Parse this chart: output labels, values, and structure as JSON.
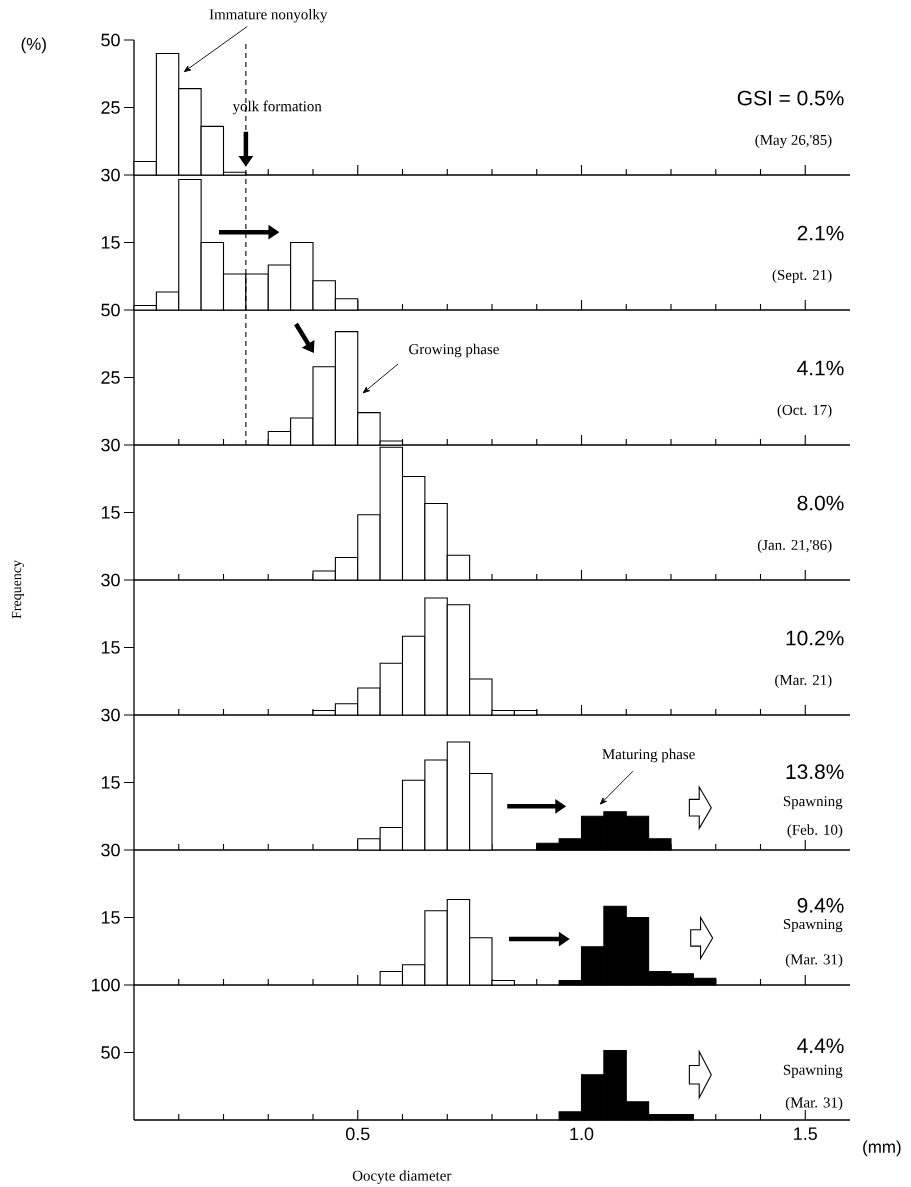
{
  "chart_data": [
    {
      "type": "histogram",
      "title": "GSI = 0.5%",
      "subtitle": "(May 26,'85)",
      "color": "#ffffff",
      "bins": [
        0,
        0.05,
        0.1,
        0.15,
        0.2,
        0.25
      ],
      "values": [
        5,
        45,
        32,
        18,
        1
      ],
      "xlim": [
        0,
        1.6
      ],
      "xticks": [
        {
          "value": 0.1,
          "label": null
        },
        {
          "value": 0.2,
          "label": null
        },
        {
          "value": 0.3,
          "label": null
        },
        {
          "value": 0.4,
          "label": null
        },
        {
          "value": 0.5,
          "label": null
        },
        {
          "value": 0.6,
          "label": null
        },
        {
          "value": 0.7,
          "label": null
        },
        {
          "value": 0.8,
          "label": null
        },
        {
          "value": 0.9,
          "label": null
        },
        {
          "value": 1.0,
          "label": null
        },
        {
          "value": 1.1,
          "label": null
        },
        {
          "value": 1.2,
          "label": null
        },
        {
          "value": 1.3,
          "label": null
        },
        {
          "value": 1.4,
          "label": null
        },
        {
          "value": 1.5,
          "label": null
        }
      ],
      "ylim": [
        0,
        50
      ],
      "yticks": [
        25,
        50
      ],
      "tick_labels": "y",
      "ref_lines": [
        {
          "axis": "x",
          "value": 0.25,
          "line_style": "dashed"
        }
      ],
      "annotations": [
        "(%)",
        {
          "text": "Immature nonyolky",
          "x": 0.11,
          "y": 38
        },
        "yolk formation"
      ]
    },
    {
      "type": "histogram",
      "title": "2.1%",
      "subtitle": "(Sept. 21)",
      "color": "#ffffff",
      "bins": [
        0,
        0.05,
        0.1,
        0.15,
        0.2,
        0.25,
        0.3,
        0.35,
        0.4,
        0.45,
        0.5
      ],
      "values": [
        1,
        4,
        29,
        15,
        8,
        8,
        10,
        15,
        6.5,
        2.5
      ],
      "xlim": [
        0,
        1.6
      ],
      "xticks": [
        {
          "value": 0.1,
          "label": null
        },
        {
          "value": 0.2,
          "label": null
        },
        {
          "value": 0.3,
          "label": null
        },
        {
          "value": 0.4,
          "label": null
        },
        {
          "value": 0.5,
          "label": null
        },
        {
          "value": 0.6,
          "label": null
        },
        {
          "value": 0.7,
          "label": null
        },
        {
          "value": 0.8,
          "label": null
        },
        {
          "value": 0.9,
          "label": null
        },
        {
          "value": 1.0,
          "label": null
        },
        {
          "value": 1.1,
          "label": null
        },
        {
          "value": 1.2,
          "label": null
        },
        {
          "value": 1.3,
          "label": null
        },
        {
          "value": 1.4,
          "label": null
        },
        {
          "value": 1.5,
          "label": null
        }
      ],
      "ylim": [
        0,
        30
      ],
      "yticks": [
        15,
        30
      ],
      "tick_labels": "y",
      "ref_lines": [
        {
          "axis": "x",
          "value": 0.25,
          "line_style": "dashed"
        }
      ]
    },
    {
      "type": "histogram",
      "title": "4.1%",
      "subtitle": "(Oct. 17)",
      "color": "#ffffff",
      "bins": [
        0.3,
        0.35,
        0.4,
        0.45,
        0.5,
        0.55,
        0.6
      ],
      "values": [
        5,
        10,
        29,
        42,
        12,
        1.5
      ],
      "xlim": [
        0,
        1.6
      ],
      "xticks": [
        {
          "value": 0.1,
          "label": null
        },
        {
          "value": 0.2,
          "label": null
        },
        {
          "value": 0.3,
          "label": null
        },
        {
          "value": 0.4,
          "label": null
        },
        {
          "value": 0.5,
          "label": null
        },
        {
          "value": 0.6,
          "label": null
        },
        {
          "value": 0.7,
          "label": null
        },
        {
          "value": 0.8,
          "label": null
        },
        {
          "value": 0.9,
          "label": null
        },
        {
          "value": 1.0,
          "label": null
        },
        {
          "value": 1.1,
          "label": null
        },
        {
          "value": 1.2,
          "label": null
        },
        {
          "value": 1.3,
          "label": null
        },
        {
          "value": 1.4,
          "label": null
        },
        {
          "value": 1.5,
          "label": null
        }
      ],
      "ylim": [
        0,
        50
      ],
      "yticks": [
        25,
        50
      ],
      "tick_labels": "y",
      "ref_lines": [
        {
          "axis": "x",
          "value": 0.25,
          "line_style": "dashed"
        }
      ],
      "annotations": [
        {
          "text": "Growing phase",
          "x": 0.51,
          "y": 19
        }
      ]
    },
    {
      "type": "histogram",
      "title": "8.0%",
      "subtitle": "(Jan. 21,'86)",
      "ylabel": "Frequency",
      "color": "#ffffff",
      "bins": [
        0.4,
        0.45,
        0.5,
        0.55,
        0.6,
        0.65,
        0.7,
        0.75
      ],
      "values": [
        2,
        5,
        14.5,
        29.5,
        23,
        17,
        5.5
      ],
      "xlim": [
        0,
        1.6
      ],
      "xticks": [
        {
          "value": 0.1,
          "label": null
        },
        {
          "value": 0.2,
          "label": null
        },
        {
          "value": 0.3,
          "label": null
        },
        {
          "value": 0.4,
          "label": null
        },
        {
          "value": 0.5,
          "label": null
        },
        {
          "value": 0.6,
          "label": null
        },
        {
          "value": 0.7,
          "label": null
        },
        {
          "value": 0.8,
          "label": null
        },
        {
          "value": 0.9,
          "label": null
        },
        {
          "value": 1.0,
          "label": null
        },
        {
          "value": 1.1,
          "label": null
        },
        {
          "value": 1.2,
          "label": null
        },
        {
          "value": 1.3,
          "label": null
        },
        {
          "value": 1.4,
          "label": null
        },
        {
          "value": 1.5,
          "label": null
        }
      ],
      "ylim": [
        0,
        30
      ],
      "yticks": [
        15,
        30
      ],
      "tick_labels": "y"
    },
    {
      "type": "histogram",
      "title": "10.2%",
      "subtitle": "(Mar. 21)",
      "color": "#ffffff",
      "bins": [
        0.4,
        0.45,
        0.5,
        0.55,
        0.6,
        0.65,
        0.7,
        0.75,
        0.8,
        0.85,
        0.9
      ],
      "values": [
        1,
        2.5,
        6,
        11.5,
        17.5,
        26,
        24.5,
        8,
        1,
        1
      ],
      "xlim": [
        0,
        1.6
      ],
      "xticks": [
        {
          "value": 0.1,
          "label": null
        },
        {
          "value": 0.2,
          "label": null
        },
        {
          "value": 0.3,
          "label": null
        },
        {
          "value": 0.4,
          "label": null
        },
        {
          "value": 0.5,
          "label": null
        },
        {
          "value": 0.6,
          "label": null
        },
        {
          "value": 0.7,
          "label": null
        },
        {
          "value": 0.8,
          "label": null
        },
        {
          "value": 0.9,
          "label": null
        },
        {
          "value": 1.0,
          "label": null
        },
        {
          "value": 1.1,
          "label": null
        },
        {
          "value": 1.2,
          "label": null
        },
        {
          "value": 1.3,
          "label": null
        },
        {
          "value": 1.4,
          "label": null
        },
        {
          "value": 1.5,
          "label": null
        }
      ],
      "ylim": [
        0,
        30
      ],
      "yticks": [
        15,
        30
      ],
      "tick_labels": "y"
    },
    {
      "type": "histogram",
      "title": "13.8%",
      "subtitle": "(Feb. 10)",
      "bins": [
        0.5,
        0.55,
        0.6,
        0.65,
        0.7,
        0.75,
        0.8,
        0.85,
        0.9,
        0.95,
        1.0,
        1.05,
        1.1,
        1.15,
        1.2
      ],
      "series": [
        {
          "color": "#ffffff",
          "values": [
            2.5,
            5,
            15.5,
            20,
            24,
            17,
            null,
            null,
            null,
            null,
            null,
            null,
            null,
            null
          ]
        },
        {
          "color": "#000000",
          "values": [
            null,
            null,
            null,
            null,
            null,
            null,
            null,
            null,
            1.5,
            2.5,
            7.5,
            8.5,
            7.5,
            2.5
          ]
        }
      ],
      "xlim": [
        0,
        1.6
      ],
      "xticks": [
        {
          "value": 0.1,
          "label": null
        },
        {
          "value": 0.2,
          "label": null
        },
        {
          "value": 0.3,
          "label": null
        },
        {
          "value": 0.4,
          "label": null
        },
        {
          "value": 0.5,
          "label": null
        },
        {
          "value": 0.6,
          "label": null
        },
        {
          "value": 0.7,
          "label": null
        },
        {
          "value": 0.8,
          "label": null
        },
        {
          "value": 0.9,
          "label": null
        },
        {
          "value": 1.0,
          "label": null
        },
        {
          "value": 1.1,
          "label": null
        },
        {
          "value": 1.2,
          "label": null
        },
        {
          "value": 1.3,
          "label": null
        },
        {
          "value": 1.4,
          "label": null
        },
        {
          "value": 1.5,
          "label": null
        }
      ],
      "ylim": [
        0,
        30
      ],
      "yticks": [
        15,
        30
      ],
      "tick_labels": "y",
      "annotations": [
        "Maturing phase",
        "Spawning"
      ]
    },
    {
      "type": "histogram",
      "title": "9.4%",
      "subtitle": "(Mar. 31)",
      "bins": [
        0.55,
        0.6,
        0.65,
        0.7,
        0.75,
        0.8,
        0.85,
        0.9,
        0.95,
        1.0,
        1.05,
        1.1,
        1.15,
        1.2,
        1.25,
        1.3
      ],
      "series": [
        {
          "color": "#ffffff",
          "values": [
            3,
            4.5,
            16.5,
            19,
            10.5,
            1,
            null,
            null,
            null,
            null,
            null,
            null,
            null,
            null,
            null
          ]
        },
        {
          "color": "#000000",
          "values": [
            null,
            null,
            null,
            null,
            null,
            null,
            null,
            null,
            1,
            8.5,
            17.5,
            15,
            3,
            2.5,
            1.5
          ]
        }
      ],
      "xlim": [
        0,
        1.6
      ],
      "xticks": [
        {
          "value": 0.1,
          "label": null
        },
        {
          "value": 0.2,
          "label": null
        },
        {
          "value": 0.3,
          "label": null
        },
        {
          "value": 0.4,
          "label": null
        },
        {
          "value": 0.5,
          "label": null
        },
        {
          "value": 0.6,
          "label": null
        },
        {
          "value": 0.7,
          "label": null
        },
        {
          "value": 0.8,
          "label": null
        },
        {
          "value": 0.9,
          "label": null
        },
        {
          "value": 1.0,
          "label": null
        },
        {
          "value": 1.1,
          "label": null
        },
        {
          "value": 1.2,
          "label": null
        },
        {
          "value": 1.3,
          "label": null
        },
        {
          "value": 1.4,
          "label": null
        },
        {
          "value": 1.5,
          "label": null
        }
      ],
      "ylim": [
        0,
        30
      ],
      "yticks": [
        15,
        30
      ],
      "tick_labels": "y",
      "annotations": [
        "Spawning"
      ]
    },
    {
      "type": "histogram",
      "title": "4.4%",
      "subtitle": "(Mar. 31)",
      "xlabel": "Oocyte diameter",
      "color": "#000000",
      "bins": [
        0.95,
        1.0,
        1.05,
        1.1,
        1.15,
        1.2,
        1.25
      ],
      "values": [
        6,
        33.5,
        51.5,
        13.5,
        4,
        4
      ],
      "xlim": [
        0,
        1.6
      ],
      "xticks": [
        {
          "value": 0.1,
          "label": null
        },
        {
          "value": 0.2,
          "label": null
        },
        {
          "value": 0.3,
          "label": null
        },
        {
          "value": 0.4,
          "label": null
        },
        {
          "value": 0.5,
          "label": "0.5"
        },
        {
          "value": 0.6,
          "label": null
        },
        {
          "value": 0.7,
          "label": null
        },
        {
          "value": 0.8,
          "label": null
        },
        {
          "value": 0.9,
          "label": null
        },
        {
          "value": 1.0,
          "label": "1.0"
        },
        {
          "value": 1.1,
          "label": null
        },
        {
          "value": 1.2,
          "label": null
        },
        {
          "value": 1.3,
          "label": null
        },
        {
          "value": 1.4,
          "label": null
        },
        {
          "value": 1.5,
          "label": "1.5"
        }
      ],
      "ylim": [
        0,
        100
      ],
      "yticks": [
        50,
        100
      ],
      "annotations": [
        "Spawning",
        "(mm)"
      ]
    }
  ]
}
